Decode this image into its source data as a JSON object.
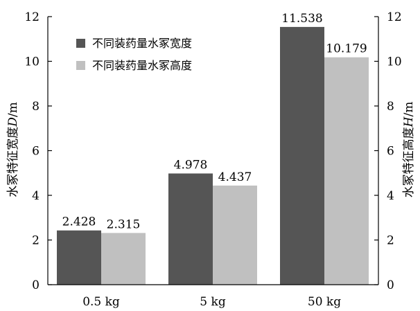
{
  "chart_data": {
    "type": "bar",
    "categories": [
      "0.5 kg",
      "5 kg",
      "50 kg"
    ],
    "series": [
      {
        "name": "不同装药量水冢宽度",
        "values": [
          2.428,
          4.978,
          11.538
        ],
        "labels": [
          "2.428",
          "4.978",
          "11.538"
        ],
        "color": "#555555"
      },
      {
        "name": "不同装药量水冢高度",
        "values": [
          2.315,
          4.437,
          10.179
        ],
        "labels": [
          "2.315",
          "4.437",
          "10.179"
        ],
        "color": "#c0c0c0"
      }
    ],
    "ylim": [
      0,
      12
    ],
    "yticks": [
      "0",
      "2",
      "4",
      "6",
      "8",
      "10",
      "12"
    ],
    "y2lim": [
      0,
      12
    ],
    "y2ticks": [
      "0",
      "2",
      "4",
      "6",
      "8",
      "10",
      "12"
    ],
    "ylabel": {
      "prefix": "水冢特征宽度",
      "symbol": "D",
      "unit": "/m"
    },
    "y2label": {
      "prefix": "水冢特征高度",
      "symbol": "H",
      "unit": "/m"
    },
    "legend_position": "top-left",
    "grid": false
  }
}
